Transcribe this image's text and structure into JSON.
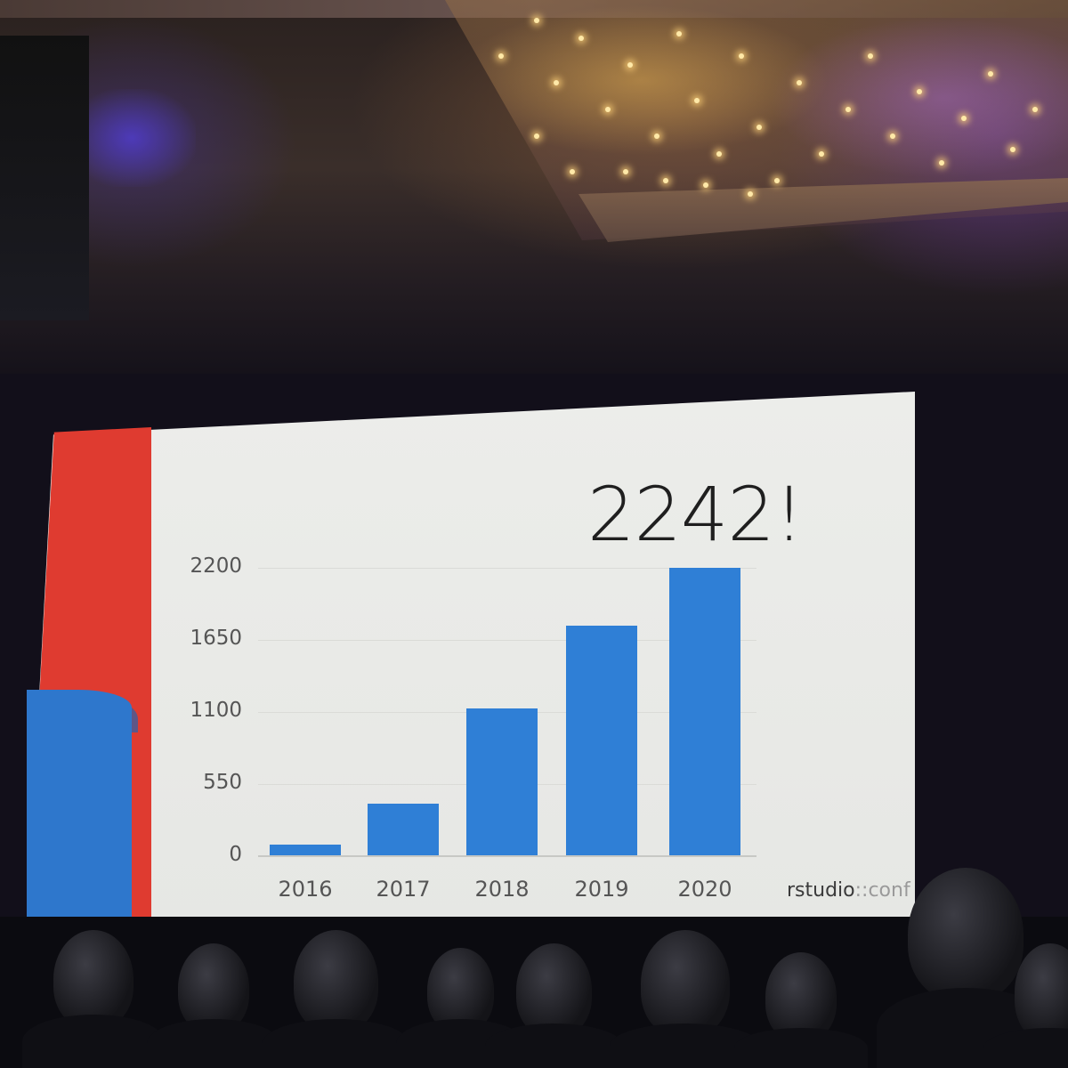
{
  "slide": {
    "headline": "2242!",
    "logo_main": "rstudio",
    "logo_sep": "::",
    "logo_suffix": "conf"
  },
  "chart_data": {
    "type": "bar",
    "categories": [
      "2016",
      "2017",
      "2018",
      "2019",
      "2020"
    ],
    "values": [
      90,
      400,
      1130,
      1760,
      2200
    ],
    "yticks": [
      "0",
      "550",
      "1100",
      "1650",
      "2200"
    ],
    "ylim": [
      0,
      2200
    ],
    "grid": true,
    "bar_color": "#2f7fd6"
  },
  "colors": {
    "slide_red": "#df3b30",
    "slide_blue": "#2e77cc",
    "slide_background": "#ecedea"
  }
}
